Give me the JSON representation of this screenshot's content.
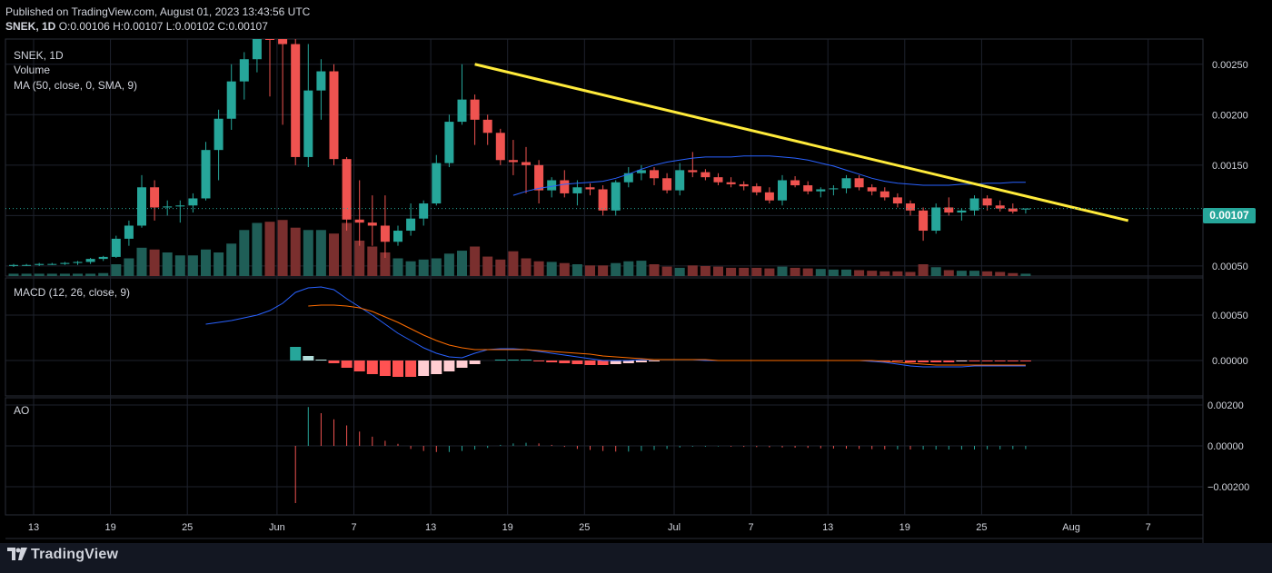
{
  "header": {
    "published": "Published on TradingView.com, August 01, 2023 13:43:56 UTC",
    "symbol": "SNEK, 1D",
    "ohlc": " O:0.00106 H:0.00107 L:0.00102 C:0.00107"
  },
  "labels": {
    "main": [
      "SNEK, 1D",
      "Volume",
      "MA (50, close, 0, SMA, 9)"
    ],
    "macd": "MACD (12, 26, close, 9)",
    "ao": "AO"
  },
  "last_price": "0.00107",
  "brand": "TradingView",
  "colors": {
    "up": "#26a69a",
    "down": "#ef5350",
    "upVol": "#1f5e57",
    "downVol": "#7a2f2e",
    "ma": "#2962ff",
    "macd": "#2962ff",
    "signal": "#ff6d00",
    "trend": "#ffeb3b",
    "histPos": "#26a69a",
    "histPosLight": "#b2dfdb",
    "histNeg": "#ff5252",
    "histNegLight": "#ffcdd2"
  },
  "chart_data": {
    "type": "candlestick",
    "x_ticks": [
      "13",
      "19",
      "25",
      "Jun",
      "7",
      "13",
      "19",
      "25",
      "Jul",
      "7",
      "13",
      "19",
      "25",
      "Aug",
      "7"
    ],
    "price_ticks": [
      "0.00250",
      "0.00200",
      "0.00150",
      "0.00100",
      "0.00050"
    ],
    "macd_ticks": [
      "0.00050",
      "0.00000"
    ],
    "ao_ticks": [
      "0.00200",
      "0.00000",
      "−0.00200"
    ],
    "price_range": [
      0.0005,
      0.00275
    ],
    "candles": [
      [
        0.0005,
        0.00052,
        0.00049,
        0.00051
      ],
      [
        0.00051,
        0.00052,
        0.0005,
        0.00051
      ],
      [
        0.00051,
        0.00053,
        0.0005,
        0.00052
      ],
      [
        0.00052,
        0.00053,
        0.00051,
        0.00052
      ],
      [
        0.00052,
        0.00054,
        0.00051,
        0.00053
      ],
      [
        0.00053,
        0.00055,
        0.00051,
        0.00054
      ],
      [
        0.00054,
        0.00058,
        0.00052,
        0.00057
      ],
      [
        0.00057,
        0.0006,
        0.00055,
        0.00059
      ],
      [
        0.00059,
        0.0008,
        0.00058,
        0.00077
      ],
      [
        0.00077,
        0.00095,
        0.0007,
        0.0009
      ],
      [
        0.0009,
        0.0014,
        0.00088,
        0.00128
      ],
      [
        0.00128,
        0.00135,
        0.00095,
        0.00108
      ],
      [
        0.00108,
        0.00115,
        0.001,
        0.00109
      ],
      [
        0.00109,
        0.00115,
        0.00093,
        0.0011
      ],
      [
        0.0011,
        0.00122,
        0.00103,
        0.00117
      ],
      [
        0.00117,
        0.00173,
        0.00115,
        0.00165
      ],
      [
        0.00165,
        0.00205,
        0.00135,
        0.00196
      ],
      [
        0.00196,
        0.0025,
        0.00185,
        0.00233
      ],
      [
        0.00233,
        0.00262,
        0.00215,
        0.00255
      ],
      [
        0.00255,
        0.00302,
        0.00242,
        0.00285
      ],
      [
        0.00285,
        0.00312,
        0.00218,
        0.0028
      ],
      [
        0.0028,
        0.0029,
        0.0019,
        0.0027
      ],
      [
        0.0027,
        0.00285,
        0.0015,
        0.00158
      ],
      [
        0.00158,
        0.0027,
        0.00148,
        0.00224
      ],
      [
        0.00224,
        0.00255,
        0.00195,
        0.00243
      ],
      [
        0.00243,
        0.0025,
        0.0015,
        0.00156
      ],
      [
        0.00156,
        0.00158,
        0.00085,
        0.00096
      ],
      [
        0.00096,
        0.00135,
        0.0007,
        0.00093
      ],
      [
        0.00093,
        0.0012,
        0.0007,
        0.0009
      ],
      [
        0.0009,
        0.0012,
        0.00058,
        0.00074
      ],
      [
        0.00074,
        0.0009,
        0.0007,
        0.00085
      ],
      [
        0.00085,
        0.00112,
        0.0008,
        0.00097
      ],
      [
        0.00097,
        0.00115,
        0.0009,
        0.00112
      ],
      [
        0.00112,
        0.0016,
        0.0011,
        0.00152
      ],
      [
        0.00152,
        0.002,
        0.00148,
        0.00193
      ],
      [
        0.00193,
        0.0025,
        0.0019,
        0.00215
      ],
      [
        0.00215,
        0.0022,
        0.0017,
        0.00195
      ],
      [
        0.00195,
        0.002,
        0.0017,
        0.00182
      ],
      [
        0.00182,
        0.00186,
        0.0015,
        0.00155
      ],
      [
        0.00155,
        0.00175,
        0.0014,
        0.00153
      ],
      [
        0.00153,
        0.00168,
        0.00122,
        0.0015
      ],
      [
        0.0015,
        0.00155,
        0.00112,
        0.00125
      ],
      [
        0.00125,
        0.00138,
        0.00118,
        0.00135
      ],
      [
        0.00135,
        0.00145,
        0.00118,
        0.00122
      ],
      [
        0.00122,
        0.00135,
        0.0011,
        0.00128
      ],
      [
        0.00128,
        0.00132,
        0.0012,
        0.00126
      ],
      [
        0.00126,
        0.0013,
        0.001,
        0.00105
      ],
      [
        0.00105,
        0.00135,
        0.001,
        0.00133
      ],
      [
        0.00133,
        0.00148,
        0.00128,
        0.00142
      ],
      [
        0.00142,
        0.0015,
        0.00135,
        0.00145
      ],
      [
        0.00145,
        0.00148,
        0.0013,
        0.00137
      ],
      [
        0.00137,
        0.00142,
        0.00122,
        0.00125
      ],
      [
        0.00125,
        0.00152,
        0.0012,
        0.00145
      ],
      [
        0.00145,
        0.00163,
        0.00138,
        0.00143
      ],
      [
        0.00143,
        0.00146,
        0.00135,
        0.00138
      ],
      [
        0.00138,
        0.00142,
        0.0013,
        0.00133
      ],
      [
        0.00133,
        0.00138,
        0.00128,
        0.00131
      ],
      [
        0.00131,
        0.00134,
        0.00125,
        0.00129
      ],
      [
        0.00129,
        0.00132,
        0.0012,
        0.00123
      ],
      [
        0.00123,
        0.00128,
        0.00112,
        0.00115
      ],
      [
        0.00115,
        0.0014,
        0.0011,
        0.00135
      ],
      [
        0.00135,
        0.00139,
        0.00128,
        0.0013
      ],
      [
        0.0013,
        0.00134,
        0.00121,
        0.00124
      ],
      [
        0.00124,
        0.00128,
        0.00118,
        0.00126
      ],
      [
        0.00126,
        0.0013,
        0.0012,
        0.00127
      ],
      [
        0.00127,
        0.0014,
        0.00122,
        0.00137
      ],
      [
        0.00137,
        0.0014,
        0.00125,
        0.00128
      ],
      [
        0.00128,
        0.00131,
        0.0012,
        0.00124
      ],
      [
        0.00124,
        0.00128,
        0.00115,
        0.00118
      ],
      [
        0.00118,
        0.00122,
        0.00108,
        0.00112
      ],
      [
        0.00112,
        0.00115,
        0.001,
        0.00105
      ],
      [
        0.00105,
        0.00108,
        0.00075,
        0.00085
      ],
      [
        0.00085,
        0.00112,
        0.00082,
        0.00108
      ],
      [
        0.00108,
        0.00118,
        0.001,
        0.00103
      ],
      [
        0.00103,
        0.00107,
        0.00095,
        0.00105
      ],
      [
        0.00105,
        0.0012,
        0.001,
        0.00117
      ],
      [
        0.00117,
        0.0012,
        0.00105,
        0.0011
      ],
      [
        0.0011,
        0.00115,
        0.00104,
        0.00107
      ],
      [
        0.00107,
        0.00112,
        0.00102,
        0.00104
      ],
      [
        0.00106,
        0.00107,
        0.00102,
        0.00107
      ]
    ],
    "volume": [
      4,
      4,
      4,
      4,
      4,
      4,
      4,
      5,
      20,
      30,
      48,
      45,
      40,
      35,
      35,
      45,
      40,
      55,
      78,
      90,
      92,
      95,
      82,
      78,
      78,
      72,
      90,
      60,
      50,
      40,
      30,
      25,
      28,
      30,
      38,
      43,
      50,
      33,
      28,
      42,
      30,
      25,
      24,
      22,
      20,
      18,
      18,
      22,
      25,
      26,
      20,
      16,
      14,
      18,
      17,
      16,
      14,
      14,
      14,
      13,
      16,
      14,
      13,
      12,
      11,
      11,
      10,
      9,
      8,
      8,
      7,
      20,
      15,
      10,
      9,
      9,
      8,
      7,
      5,
      4
    ],
    "ma": [
      null,
      null,
      null,
      null,
      null,
      null,
      null,
      null,
      null,
      null,
      null,
      null,
      null,
      null,
      null,
      null,
      null,
      null,
      null,
      null,
      null,
      null,
      null,
      null,
      null,
      null,
      null,
      null,
      null,
      null,
      null,
      null,
      null,
      null,
      null,
      null,
      null,
      null,
      null,
      0.0012,
      0.00124,
      0.00127,
      0.00129,
      0.00131,
      0.00132,
      0.00133,
      0.00134,
      0.00137,
      0.00141,
      0.00146,
      0.0015,
      0.00153,
      0.00155,
      0.00157,
      0.00158,
      0.00158,
      0.00158,
      0.00159,
      0.00159,
      0.00159,
      0.00158,
      0.00157,
      0.00155,
      0.00152,
      0.00149,
      0.00145,
      0.00141,
      0.00137,
      0.00134,
      0.00132,
      0.00131,
      0.0013,
      0.0013,
      0.0013,
      0.00131,
      0.00131,
      0.00132,
      0.00132,
      0.00133,
      0.00133
    ],
    "macd_line": [
      null,
      null,
      null,
      null,
      null,
      null,
      null,
      null,
      null,
      null,
      null,
      null,
      null,
      null,
      null,
      0.0004,
      0.00042,
      0.00044,
      0.00047,
      0.0005,
      0.00055,
      0.00063,
      0.00075,
      0.0008,
      0.00081,
      0.00078,
      0.00068,
      0.00059,
      0.0005,
      0.0004,
      0.0003,
      0.00022,
      0.00014,
      8e-05,
      4e-05,
      3e-05,
      8e-05,
      0.00012,
      0.00013,
      0.00013,
      0.00012,
      0.0001,
      8e-05,
      6e-05,
      4e-05,
      2e-05,
      0.0,
      0.0,
      0.0,
      1e-05,
      1e-05,
      1e-05,
      1e-05,
      1e-05,
      0.0,
      0.0,
      0.0,
      0.0,
      0.0,
      0.0,
      0.0,
      0.0,
      0.0,
      0.0,
      0.0,
      0.0,
      0.0,
      -1e-05,
      -2e-05,
      -4e-05,
      -6e-05,
      -7e-05,
      -7e-05,
      -7e-05,
      -7e-05,
      -6e-05,
      -6e-05,
      -6e-05,
      -6e-05,
      -6e-05
    ],
    "signal_line": [
      null,
      null,
      null,
      null,
      null,
      null,
      null,
      null,
      null,
      null,
      null,
      null,
      null,
      null,
      null,
      null,
      null,
      null,
      null,
      null,
      null,
      null,
      null,
      0.0006,
      0.00061,
      0.00061,
      0.0006,
      0.00058,
      0.00054,
      0.00048,
      0.00042,
      0.00035,
      0.00028,
      0.00022,
      0.00017,
      0.00014,
      0.00012,
      0.00012,
      0.00012,
      0.00012,
      0.00012,
      0.00011,
      0.0001,
      9e-05,
      8e-05,
      7e-05,
      5e-05,
      4e-05,
      3e-05,
      2e-05,
      1e-05,
      1e-05,
      1e-05,
      1e-05,
      1e-05,
      0.0,
      0.0,
      0.0,
      0.0,
      0.0,
      0.0,
      0.0,
      0.0,
      0.0,
      0.0,
      0.0,
      0.0,
      0.0,
      -1e-05,
      -2e-05,
      -3e-05,
      -4e-05,
      -5e-05,
      -5e-05,
      -5e-05,
      -5e-05,
      -5e-05,
      -5e-05,
      -5e-05,
      -5e-05
    ],
    "macd_hist": [
      0,
      0,
      0,
      0,
      0,
      0,
      0,
      0,
      0,
      0,
      0,
      0,
      0,
      0,
      0,
      0,
      0,
      0,
      0,
      0,
      0,
      0,
      0.00015,
      5e-05,
      1e-05,
      -3e-05,
      -8e-05,
      -0.00012,
      -0.00015,
      -0.00017,
      -0.00018,
      -0.00018,
      -0.00017,
      -0.00015,
      -0.00012,
      -8e-05,
      -4e-05,
      0.0,
      1e-05,
      1e-05,
      1e-05,
      -1e-05,
      -2e-05,
      -3e-05,
      -4e-05,
      -5e-05,
      -5e-05,
      -4e-05,
      -3e-05,
      -2e-05,
      -1e-05,
      0.0,
      0.0,
      0.0,
      0.0,
      0.0,
      0.0,
      0.0,
      0.0,
      0.0,
      0.0,
      0.0,
      0.0,
      0.0,
      0.0,
      0.0,
      0.0,
      0.0,
      -1e-05,
      -1e-05,
      -2e-05,
      -2e-05,
      -2e-05,
      -2e-05,
      -1e-05,
      -1e-05,
      -1e-05,
      -1e-05,
      -1e-05,
      -1e-05
    ],
    "ao": [
      0,
      0,
      0,
      0,
      0,
      0,
      0,
      0,
      0,
      0,
      0,
      0,
      0,
      0,
      0,
      0,
      0,
      0,
      0,
      0,
      0,
      0,
      -0.0028,
      0.0019,
      0.0016,
      0.0013,
      0.001,
      0.0007,
      0.00045,
      0.00025,
      0.0001,
      -0.00015,
      -0.00025,
      -0.0003,
      -0.0003,
      -0.00025,
      -0.00018,
      -0.0001,
      5e-05,
      0.00012,
      0.00015,
      0.00012,
      5e-05,
      -5e-05,
      -0.00015,
      -0.0002,
      -0.00025,
      -0.00028,
      -0.00028,
      -0.00025,
      -0.0002,
      -0.00015,
      -8e-05,
      -4e-05,
      -4e-05,
      -3e-05,
      -4e-05,
      -5e-05,
      -6e-05,
      -7e-05,
      -8e-05,
      -9e-05,
      -0.0001,
      -0.00012,
      -0.00013,
      -0.00014,
      -0.00015,
      -0.00016,
      -0.00017,
      -0.00017,
      -0.00018,
      -0.00018,
      -0.00018,
      -0.00018,
      -0.00018,
      -0.00018,
      -0.00017,
      -0.00017,
      -0.00016,
      -0.00016
    ],
    "trendline": {
      "from": [
        36,
        0.0025
      ],
      "to": [
        87,
        0.00095
      ]
    }
  }
}
